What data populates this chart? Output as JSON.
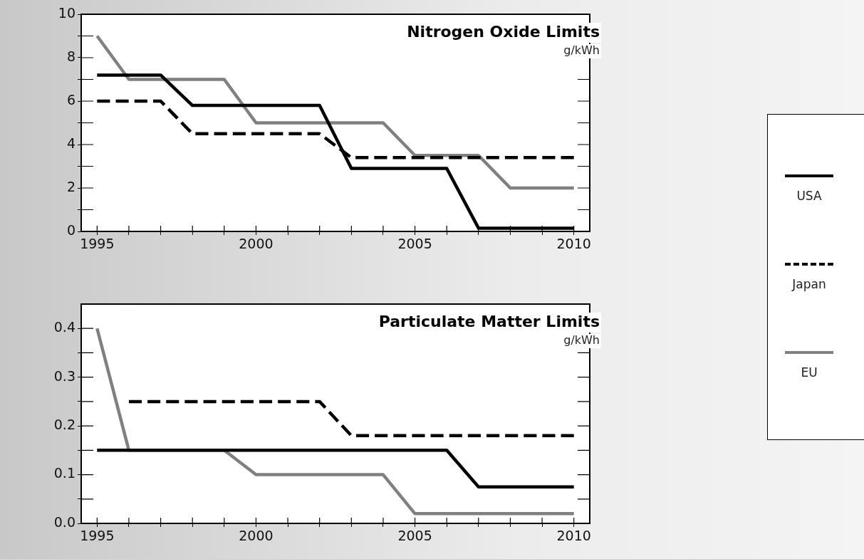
{
  "chart_data": [
    {
      "type": "line",
      "title": "Nitrogen Oxide Limits",
      "subtitle": "g/kWh",
      "x": [
        1995,
        1996,
        1997,
        1998,
        1999,
        2000,
        2001,
        2002,
        2003,
        2004,
        2005,
        2006,
        2007,
        2008,
        2009,
        2010
      ],
      "series": [
        {
          "name": "USA",
          "color": "#000000",
          "line_style": "solid",
          "values": [
            7.2,
            7.2,
            7.2,
            5.8,
            5.8,
            5.8,
            5.8,
            5.8,
            2.9,
            2.9,
            2.9,
            2.9,
            0.15,
            0.15,
            0.15,
            0.15
          ]
        },
        {
          "name": "Japan",
          "color": "#000000",
          "line_style": "dashed",
          "values": [
            6,
            6,
            6,
            4.5,
            4.5,
            4.5,
            4.5,
            4.5,
            3.4,
            3.4,
            3.4,
            3.4,
            3.4,
            3.4,
            3.4,
            3.4
          ]
        },
        {
          "name": "EU",
          "color": "#808080",
          "line_style": "solid",
          "values": [
            9,
            7,
            7,
            7,
            7,
            5,
            5,
            5,
            5,
            5,
            3.5,
            3.5,
            3.5,
            2,
            2,
            2
          ]
        }
      ],
      "xlim": [
        1994.5,
        2010.5
      ],
      "xticks": [
        1995,
        {
          "value": 1996,
          "label": null
        },
        {
          "value": 1997,
          "label": null
        },
        {
          "value": 1998,
          "label": null
        },
        {
          "value": 1999,
          "label": null
        },
        2000,
        {
          "value": 2001,
          "label": null
        },
        {
          "value": 2002,
          "label": null
        },
        {
          "value": 2003,
          "label": null
        },
        {
          "value": 2004,
          "label": null
        },
        2005,
        {
          "value": 2006,
          "label": null
        },
        {
          "value": 2007,
          "label": null
        },
        {
          "value": 2008,
          "label": null
        },
        {
          "value": 2009,
          "label": null
        },
        2010
      ],
      "ylim": [
        0,
        10
      ],
      "yticks": [
        0,
        {
          "value": 1,
          "label": null
        },
        2,
        {
          "value": 3,
          "label": null
        },
        4,
        {
          "value": 5,
          "label": null
        },
        6,
        {
          "value": 7,
          "label": null
        },
        8,
        {
          "value": 9,
          "label": null
        },
        10
      ],
      "grid": false,
      "legend": "right",
      "marker": "none"
    },
    {
      "type": "line",
      "title": "Particulate Matter Limits",
      "subtitle": "g/kWh",
      "x": [
        1995,
        1996,
        1997,
        1998,
        1999,
        2000,
        2001,
        2002,
        2003,
        2004,
        2005,
        2006,
        2007,
        2008,
        2009,
        2010
      ],
      "series": [
        {
          "name": "USA",
          "color": "#000000",
          "line_style": "solid",
          "values": [
            0.15,
            0.15,
            0.15,
            0.15,
            0.15,
            0.15,
            0.15,
            0.15,
            0.15,
            0.15,
            0.15,
            0.15,
            0.075,
            0.075,
            0.075,
            0.075
          ]
        },
        {
          "name": "Japan",
          "color": "#000000",
          "line_style": "dashed",
          "values": [
            null,
            0.25,
            0.25,
            0.25,
            0.25,
            0.25,
            0.25,
            0.25,
            0.18,
            0.18,
            0.18,
            0.18,
            0.18,
            0.18,
            0.18,
            0.18
          ]
        },
        {
          "name": "EU",
          "color": "#808080",
          "line_style": "solid",
          "values": [
            0.4,
            0.15,
            0.15,
            0.15,
            0.15,
            0.1,
            0.1,
            0.1,
            0.1,
            0.1,
            0.02,
            0.02,
            0.02,
            0.02,
            0.02,
            0.02
          ]
        }
      ],
      "xlim": [
        1994.5,
        2010.5
      ],
      "xticks": [
        1995,
        {
          "value": 1996,
          "label": null
        },
        {
          "value": 1997,
          "label": null
        },
        {
          "value": 1998,
          "label": null
        },
        {
          "value": 1999,
          "label": null
        },
        2000,
        {
          "value": 2001,
          "label": null
        },
        {
          "value": 2002,
          "label": null
        },
        {
          "value": 2003,
          "label": null
        },
        {
          "value": 2004,
          "label": null
        },
        2005,
        {
          "value": 2006,
          "label": null
        },
        {
          "value": 2007,
          "label": null
        },
        {
          "value": 2008,
          "label": null
        },
        {
          "value": 2009,
          "label": null
        },
        2010
      ],
      "ylim": [
        0,
        0.45
      ],
      "yticks": [
        {
          "value": 0,
          "label": "0.0"
        },
        {
          "value": 0.05,
          "label": null
        },
        {
          "value": 0.1,
          "label": "0.1"
        },
        {
          "value": 0.15,
          "label": null
        },
        {
          "value": 0.2,
          "label": "0.2"
        },
        {
          "value": 0.25,
          "label": null
        },
        {
          "value": 0.3,
          "label": "0.3"
        },
        {
          "value": 0.35,
          "label": null
        },
        {
          "value": 0.4,
          "label": "0.4"
        }
      ],
      "grid": false,
      "legend": "right",
      "marker": "none"
    }
  ]
}
